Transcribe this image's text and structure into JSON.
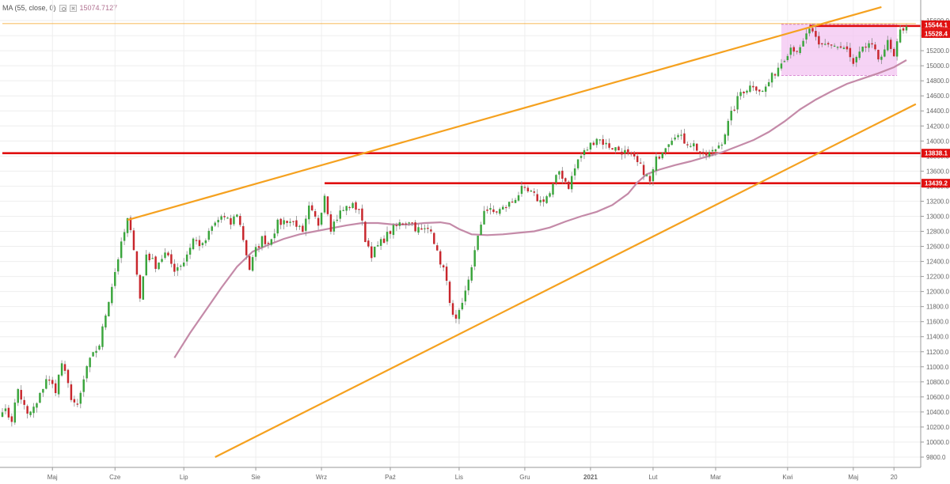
{
  "indicator": {
    "label": "MA (55, close, 0)",
    "value": "15074.7127",
    "color": "#c48aa8"
  },
  "chart_data": {
    "type": "candlestick",
    "ylim": [
      9800,
      15800
    ],
    "y_ticks": [
      9800,
      10000,
      10200,
      10400,
      10600,
      10800,
      11000,
      11200,
      11400,
      11600,
      11800,
      12000,
      12200,
      12400,
      12600,
      12800,
      13000,
      13200,
      13400,
      13600,
      13800,
      14000,
      14200,
      14400,
      14600,
      14800,
      15000,
      15200,
      15400,
      15600
    ],
    "y_tick_labels": [
      "9800.0",
      "10000.0",
      "10200.0",
      "10400.0",
      "10600.0",
      "10800.0",
      "11000.0",
      "11200.0",
      "11400.0",
      "11600.0",
      "11800.0",
      "12000.0",
      "12200.0",
      "12400.0",
      "12600.0",
      "12800.0",
      "13000.0",
      "13200.0",
      "13400.0",
      "13600.0",
      "13800.0",
      "14000.0",
      "14200.0",
      "14400.0",
      "14600.0",
      "14800.0",
      "15000.0",
      "15200.0",
      "15400.0",
      "15600.0"
    ],
    "x_labels": [
      {
        "label": "Maj",
        "i": 16
      },
      {
        "label": "Cze",
        "i": 36
      },
      {
        "label": "Lip",
        "i": 58
      },
      {
        "label": "Sie",
        "i": 81
      },
      {
        "label": "Wrz",
        "i": 102
      },
      {
        "label": "Paź",
        "i": 124
      },
      {
        "label": "Lis",
        "i": 146
      },
      {
        "label": "Gru",
        "i": 167
      },
      {
        "label": "2021",
        "i": 188
      },
      {
        "label": "Lut",
        "i": 208
      },
      {
        "label": "Mar",
        "i": 228
      },
      {
        "label": "Kwi",
        "i": 251
      },
      {
        "label": "Maj",
        "i": 272
      },
      {
        "label": "20",
        "i": 285
      }
    ],
    "total_slots": 292,
    "key_points": [
      [
        0,
        10450
      ],
      [
        3,
        10300
      ],
      [
        5,
        10700
      ],
      [
        8,
        10350
      ],
      [
        11,
        10500
      ],
      [
        14,
        10850
      ],
      [
        17,
        10700
      ],
      [
        19,
        11050
      ],
      [
        22,
        10600
      ],
      [
        24,
        10450
      ],
      [
        27,
        11000
      ],
      [
        31,
        11300
      ],
      [
        34,
        11900
      ],
      [
        37,
        12450
      ],
      [
        40,
        12950
      ],
      [
        42,
        12600
      ],
      [
        44,
        11900
      ],
      [
        46,
        12500
      ],
      [
        49,
        12350
      ],
      [
        52,
        12500
      ],
      [
        55,
        12300
      ],
      [
        58,
        12400
      ],
      [
        61,
        12700
      ],
      [
        64,
        12600
      ],
      [
        67,
        12850
      ],
      [
        70,
        13000
      ],
      [
        73,
        12900
      ],
      [
        75,
        13050
      ],
      [
        77,
        12700
      ],
      [
        79,
        12300
      ],
      [
        81,
        12550
      ],
      [
        83,
        12700
      ],
      [
        85,
        12650
      ],
      [
        88,
        12900
      ],
      [
        91,
        12950
      ],
      [
        94,
        12900
      ],
      [
        96,
        12750
      ],
      [
        98,
        13100
      ],
      [
        101,
        12900
      ],
      [
        103,
        13300
      ],
      [
        105,
        12850
      ],
      [
        108,
        13050
      ],
      [
        111,
        13150
      ],
      [
        114,
        13100
      ],
      [
        116,
        12700
      ],
      [
        118,
        12500
      ],
      [
        121,
        12650
      ],
      [
        124,
        12800
      ],
      [
        127,
        12900
      ],
      [
        130,
        12950
      ],
      [
        132,
        12850
      ],
      [
        134,
        12800
      ],
      [
        137,
        12850
      ],
      [
        139,
        12500
      ],
      [
        141,
        12300
      ],
      [
        143,
        11900
      ],
      [
        144,
        11650
      ],
      [
        145,
        11600
      ],
      [
        147,
        11800
      ],
      [
        150,
        12350
      ],
      [
        152,
        12700
      ],
      [
        154,
        13100
      ],
      [
        157,
        13050
      ],
      [
        160,
        13100
      ],
      [
        163,
        13200
      ],
      [
        166,
        13350
      ],
      [
        169,
        13300
      ],
      [
        172,
        13200
      ],
      [
        175,
        13300
      ],
      [
        178,
        13600
      ],
      [
        181,
        13400
      ],
      [
        184,
        13750
      ],
      [
        187,
        13900
      ],
      [
        190,
        14050
      ],
      [
        193,
        13950
      ],
      [
        196,
        13900
      ],
      [
        199,
        13850
      ],
      [
        202,
        13750
      ],
      [
        205,
        13600
      ],
      [
        207,
        13450
      ],
      [
        209,
        13750
      ],
      [
        212,
        13950
      ],
      [
        215,
        14100
      ],
      [
        218,
        14000
      ],
      [
        221,
        13950
      ],
      [
        224,
        13800
      ],
      [
        227,
        13850
      ],
      [
        230,
        14000
      ],
      [
        233,
        14350
      ],
      [
        236,
        14650
      ],
      [
        240,
        14750
      ],
      [
        243,
        14650
      ],
      [
        246,
        14850
      ],
      [
        249,
        15050
      ],
      [
        252,
        15250
      ],
      [
        255,
        15200
      ],
      [
        258,
        15500
      ],
      [
        261,
        15250
      ],
      [
        264,
        15300
      ],
      [
        267,
        15250
      ],
      [
        270,
        15200
      ],
      [
        272,
        15000
      ],
      [
        274,
        15150
      ],
      [
        277,
        15300
      ],
      [
        280,
        15100
      ],
      [
        283,
        15300
      ],
      [
        285,
        15100
      ],
      [
        287,
        15450
      ],
      [
        289,
        15550
      ]
    ],
    "ma_line": {
      "name": "MA (55, close, 0)",
      "color": "#c48aa8",
      "points": [
        [
          55,
          11120
        ],
        [
          60,
          11450
        ],
        [
          65,
          11750
        ],
        [
          70,
          12050
        ],
        [
          75,
          12330
        ],
        [
          80,
          12530
        ],
        [
          85,
          12620
        ],
        [
          90,
          12700
        ],
        [
          95,
          12760
        ],
        [
          100,
          12800
        ],
        [
          105,
          12840
        ],
        [
          110,
          12880
        ],
        [
          115,
          12910
        ],
        [
          120,
          12910
        ],
        [
          125,
          12890
        ],
        [
          130,
          12890
        ],
        [
          135,
          12910
        ],
        [
          140,
          12920
        ],
        [
          143,
          12900
        ],
        [
          146,
          12830
        ],
        [
          150,
          12760
        ],
        [
          155,
          12750
        ],
        [
          160,
          12760
        ],
        [
          165,
          12780
        ],
        [
          170,
          12800
        ],
        [
          175,
          12850
        ],
        [
          180,
          12930
        ],
        [
          185,
          13000
        ],
        [
          190,
          13060
        ],
        [
          195,
          13150
        ],
        [
          200,
          13300
        ],
        [
          203,
          13450
        ],
        [
          206,
          13560
        ],
        [
          210,
          13620
        ],
        [
          215,
          13680
        ],
        [
          220,
          13730
        ],
        [
          225,
          13790
        ],
        [
          230,
          13850
        ],
        [
          235,
          13930
        ],
        [
          240,
          14010
        ],
        [
          245,
          14120
        ],
        [
          250,
          14260
        ],
        [
          255,
          14420
        ],
        [
          260,
          14550
        ],
        [
          265,
          14660
        ],
        [
          270,
          14760
        ],
        [
          275,
          14830
        ],
        [
          280,
          14900
        ],
        [
          285,
          14980
        ],
        [
          289,
          15074.7
        ]
      ]
    },
    "trendlines": [
      {
        "name": "upper-channel",
        "color": "#f5a11f",
        "from": [
          40,
          12950
        ],
        "to": [
          281,
          15780
        ]
      },
      {
        "name": "lower-channel",
        "color": "#f5a11f",
        "from": [
          68,
          9800
        ],
        "to": [
          292,
          14490
        ]
      }
    ],
    "segments": [
      {
        "name": "upper-channel-resistance",
        "color": "#f5a11f",
        "from": [
          0,
          15560
        ],
        "to": [
          292,
          15560
        ],
        "width": 0.8
      }
    ],
    "horizontal_levels": [
      {
        "name": "level-13838",
        "value": 13838.1,
        "label": "13838.1",
        "color": "#e01010",
        "start": 0
      },
      {
        "name": "level-13439",
        "value": 13439.2,
        "label": "13439.2",
        "color": "#e01010",
        "start": 103
      },
      {
        "name": "level-15528",
        "value": 15528.4,
        "label": "15528.4",
        "color": "#e01010",
        "start": 258
      }
    ],
    "price_labels": [
      {
        "value": 15544.1,
        "label": "15544.1",
        "color": "#e01010"
      },
      {
        "value": 15528.4,
        "label": "15528.4",
        "color": "#e01010"
      },
      {
        "value": 13838.1,
        "label": "13838.1",
        "color": "#e01010"
      },
      {
        "value": 13439.2,
        "label": "13439.2",
        "color": "#e01010"
      }
    ],
    "range_box": {
      "x0": 249,
      "x1": 286,
      "y0": 14870,
      "y1": 15550,
      "color": "#f3c4f2"
    },
    "colors": {
      "up": "#3aa53c",
      "down": "#c8262c",
      "grid": "#eeeeee",
      "axis": "#666666"
    }
  }
}
